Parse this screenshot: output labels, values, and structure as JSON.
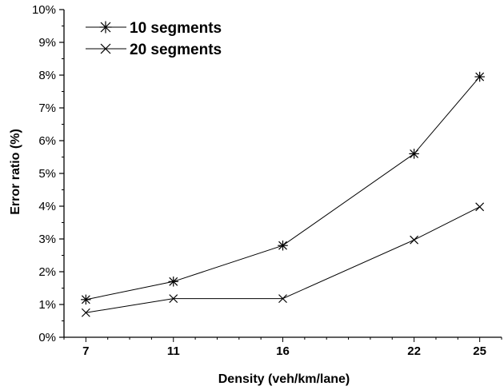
{
  "chart_data": {
    "type": "line",
    "x": [
      7,
      11,
      16,
      22,
      25
    ],
    "xticks": [
      7,
      11,
      16,
      22,
      25
    ],
    "xlim": [
      6,
      26
    ],
    "ylim": [
      0,
      10
    ],
    "yticks": [
      "0%",
      "1%",
      "2%",
      "3%",
      "4%",
      "5%",
      "6%",
      "7%",
      "8%",
      "9%",
      "10%"
    ],
    "xlabel": "Density (veh/km/lane)",
    "ylabel": "Error ratio (%)",
    "title": "",
    "legend_position": "top-left",
    "grid": false,
    "series": [
      {
        "name": "10 segments",
        "marker": "asterisk",
        "values": [
          1.15,
          1.7,
          2.8,
          5.6,
          7.95
        ],
        "color": "#000000"
      },
      {
        "name": "20 segments",
        "marker": "x",
        "values": [
          0.75,
          1.18,
          1.18,
          2.97,
          3.98
        ],
        "color": "#000000"
      }
    ]
  }
}
